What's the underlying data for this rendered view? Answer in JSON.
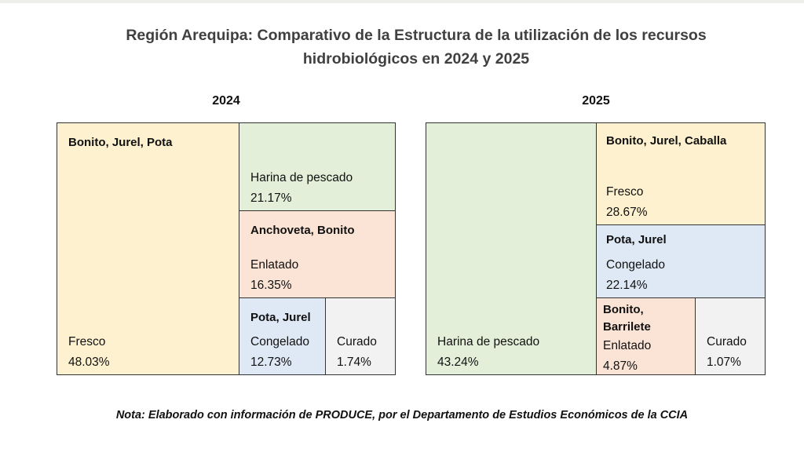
{
  "title_line1": "Región Arequipa: Comparativo de la Estructura de la utilización de los recursos",
  "title_line2": "hidrobiológicos en 2024 y 2025",
  "note": "Nota: Elaborado con información de PRODUCE, por el Departamento de Estudios Económicos de la CCIA",
  "chart_data": [
    {
      "type": "treemap",
      "title": "2024",
      "cells": [
        {
          "use": "Fresco",
          "species": "Bonito, Jurel, Pota",
          "value": "48.03%",
          "color": "#fdf1cf"
        },
        {
          "use": "Harina de pescado",
          "species": "",
          "value": "21.17%",
          "color": "#e3efd9"
        },
        {
          "use": "Enlatado",
          "species": "Anchoveta, Bonito",
          "value": "16.35%",
          "color": "#fbe4d6"
        },
        {
          "use": "Congelado",
          "species": "Pota, Jurel",
          "value": "12.73%",
          "color": "#dfe9f5"
        },
        {
          "use": "Curado",
          "species": "",
          "value": "1.74%",
          "color": "#f2f2f2"
        }
      ]
    },
    {
      "type": "treemap",
      "title": "2025",
      "cells": [
        {
          "use": "Harina de pescado",
          "species": "",
          "value": "43.24%",
          "color": "#e3efd9"
        },
        {
          "use": "Fresco",
          "species": "Bonito, Jurel, Caballa",
          "value": "28.67%",
          "color": "#fdf1cf"
        },
        {
          "use": "Congelado",
          "species": "Pota, Jurel",
          "value": "22.14%",
          "color": "#dfe9f5"
        },
        {
          "use": "Enlatado",
          "species": "Bonito, Barrilete",
          "value": "4.87%",
          "color": "#fbe4d6"
        },
        {
          "use": "Curado",
          "species": "",
          "value": "1.07%",
          "color": "#f2f2f2"
        }
      ]
    }
  ]
}
